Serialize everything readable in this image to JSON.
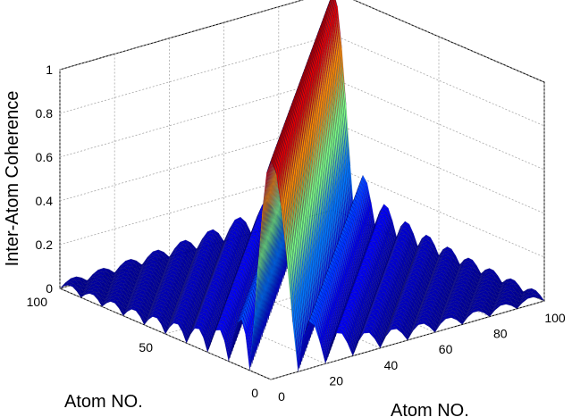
{
  "chart_data": {
    "type": "surface",
    "title": "",
    "zlabel": "Inter-Atom Coherence",
    "xlabel": "Atom NO.",
    "ylabel": "Atom NO.",
    "x_ticks": [
      "0",
      "20",
      "40",
      "60",
      "80",
      "100"
    ],
    "y_ticks": [
      "0",
      "50",
      "100"
    ],
    "z_ticks": [
      "0",
      "0.2",
      "0.4",
      "0.6",
      "0.8",
      "1"
    ],
    "xlim": [
      0,
      100
    ],
    "ylim": [
      0,
      100
    ],
    "zlim": [
      0,
      1
    ],
    "grid": true,
    "colormap": "jet",
    "surface_description": {
      "function": "|sinc(pi*(i-j)/10)|",
      "peak_value": 1,
      "peak_along": "diagonal i = j",
      "side_lobe_max": 0.22
    },
    "colors": {
      "low": "#0000a0",
      "mid": "#00ffff",
      "high": "#ff0000"
    }
  }
}
